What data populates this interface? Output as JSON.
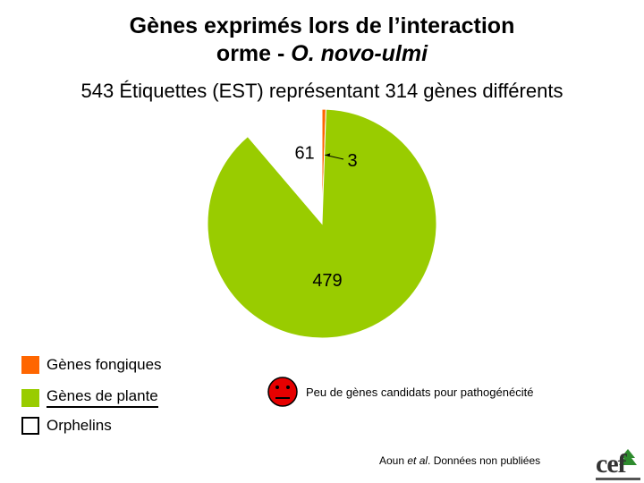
{
  "title_line1": "Gènes exprimés lors de l’interaction",
  "title_line2_prefix": "orme - ",
  "title_line2_italic": "O. novo-ulmi",
  "subtitle": "543 Étiquettes (EST) représentant 314 gènes différents",
  "colors": {
    "fungal": "#ff6600",
    "plant": "#99cc00",
    "orphan": "#ffffff",
    "outline": "#000000",
    "face": "#e60000"
  },
  "chart_data": {
    "type": "pie",
    "title": "Gènes exprimés lors de l’interaction orme - O. novo-ulmi",
    "subtitle": "543 Étiquettes (EST) représentant 314 gènes différents",
    "slices": [
      {
        "name": "Gènes fongiques",
        "value": 3,
        "label": "3",
        "color": "#ff6600"
      },
      {
        "name": "Gènes de plante",
        "value": 479,
        "label": "479",
        "color": "#99cc00"
      },
      {
        "name": "Orphelins",
        "value": 61,
        "label": "61",
        "color": "#ffffff"
      }
    ],
    "start": "12 o'clock",
    "direction": "clockwise",
    "legend_position": "bottom-left"
  },
  "legend": [
    {
      "label": "Gènes fongiques",
      "color": "#ff6600"
    },
    {
      "label": "Gènes de plante",
      "color": "#99cc00"
    },
    {
      "label": "Orphelins",
      "color": "#ffffff"
    }
  ],
  "note": {
    "icon": "sad-face-icon",
    "text": "Peu de gènes candidats pour pathogénécité"
  },
  "citation": {
    "author": "Aoun ",
    "italic": "et al",
    "rest": ". Données non publiées"
  },
  "logo": {
    "text": "cef",
    "icon": "cef-logo-icon"
  }
}
